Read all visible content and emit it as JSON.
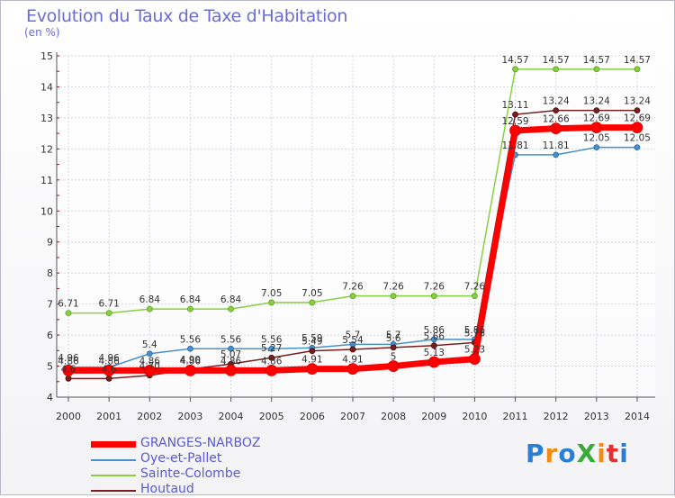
{
  "chart_data": {
    "type": "line",
    "title": "Evolution du Taux de Taxe d'Habitation",
    "subtitle": "(en %)",
    "x": [
      "2000",
      "2001",
      "2002",
      "2003",
      "2004",
      "2005",
      "2006",
      "2007",
      "2008",
      "2009",
      "2010",
      "2011",
      "2012",
      "2013",
      "2014"
    ],
    "y_ticks": [
      "4",
      "5",
      "6",
      "7",
      "8",
      "9",
      "10",
      "11",
      "12",
      "13",
      "14",
      "15"
    ],
    "ylim": [
      4,
      15
    ],
    "grid": true,
    "legend_position": "bottom-left",
    "series": [
      {
        "name": "GRANGES-NARBOZ",
        "color": "#ff0000",
        "values": [
          4.86,
          4.86,
          4.86,
          4.86,
          4.86,
          4.86,
          4.91,
          4.91,
          5.0,
          5.13,
          5.23,
          12.59,
          12.66,
          12.69,
          12.69
        ],
        "labels": [
          "4.86",
          "4.86",
          "4.86",
          "4.86",
          "4.86",
          "4.86",
          "4.91",
          "4.91",
          "5",
          "5.13",
          "5.23",
          "12.59",
          "12.66",
          "12.69",
          "12.69"
        ]
      },
      {
        "name": "Oye-et-Pallet",
        "color": "#4a90c8",
        "values": [
          4.96,
          4.96,
          5.4,
          5.56,
          5.56,
          5.56,
          5.59,
          5.7,
          5.7,
          5.86,
          5.86,
          11.81,
          11.81,
          12.05,
          12.05
        ],
        "labels": [
          "4.96",
          "4.96",
          "5.4",
          "5.56",
          "5.56",
          "5.56",
          "5.59",
          "5.7",
          "5.7",
          "5.86",
          "5.86",
          "11.81",
          "11.81",
          "12.05",
          "12.05"
        ]
      },
      {
        "name": "Sainte-Colombe",
        "color": "#88d040",
        "values": [
          6.71,
          6.71,
          6.84,
          6.84,
          6.84,
          7.05,
          7.05,
          7.26,
          7.26,
          7.26,
          7.26,
          14.57,
          14.57,
          14.57,
          14.57
        ],
        "labels": [
          "6.71",
          "6.71",
          "6.84",
          "6.84",
          "6.84",
          "7.05",
          "7.05",
          "7.26",
          "7.26",
          "7.26",
          "7.26",
          "14.57",
          "14.57",
          "14.57",
          "14.57"
        ]
      },
      {
        "name": "Houtaud",
        "color": "#7a1e1e",
        "values": [
          4.6,
          4.6,
          4.7,
          4.9,
          5.07,
          5.27,
          5.49,
          5.54,
          5.6,
          5.66,
          5.76,
          13.11,
          13.24,
          13.24,
          13.24
        ],
        "labels": [
          "4.6",
          "4.6",
          "4.70",
          "4.90",
          "5.07",
          "5.27",
          "5.49",
          "5.54",
          "5.6",
          "5.66",
          "5.76",
          "13.11",
          "13.24",
          "13.24",
          "13.24"
        ]
      }
    ]
  },
  "logo": {
    "text": "ProXiti",
    "letters": [
      {
        "ch": "P",
        "color": "#2a7fd4"
      },
      {
        "ch": "r",
        "color": "#f08a18"
      },
      {
        "ch": "o",
        "color": "#2a7fd4"
      },
      {
        "ch": "X",
        "color": "#3aaa3a"
      },
      {
        "ch": "i",
        "color": "#f08a18"
      },
      {
        "ch": "t",
        "color": "#e03030"
      },
      {
        "ch": "i",
        "color": "#2a7fd4"
      }
    ]
  }
}
